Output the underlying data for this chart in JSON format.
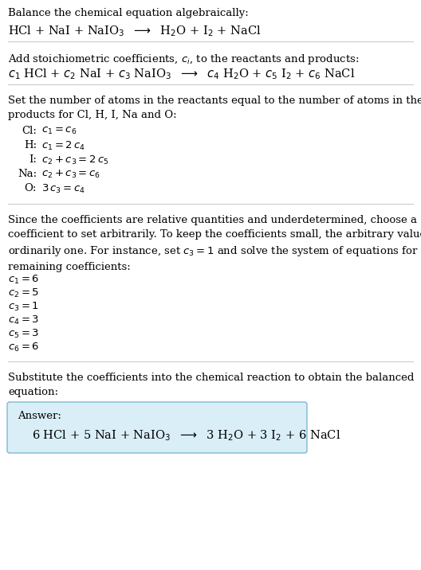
{
  "bg_color": "#ffffff",
  "text_color": "#000000",
  "section1_title": "Balance the chemical equation algebraically:",
  "section1_eq": "HCl + NaI + NaIO$_3$  $\\longrightarrow$  H$_2$O + I$_2$ + NaCl",
  "section2_title": "Add stoichiometric coefficients, $c_i$, to the reactants and products:",
  "section2_eq": "$c_1$ HCl + $c_2$ NaI + $c_3$ NaIO$_3$  $\\longrightarrow$  $c_4$ H$_2$O + $c_5$ I$_2$ + $c_6$ NaCl",
  "section3_title": "Set the number of atoms in the reactants equal to the number of atoms in the\nproducts for Cl, H, I, Na and O:",
  "section3_equations": [
    [
      "Cl:",
      "$c_1 = c_6$"
    ],
    [
      "H:",
      "$c_1 = 2\\,c_4$"
    ],
    [
      "I:",
      "$c_2 + c_3 = 2\\,c_5$"
    ],
    [
      "Na:",
      "$c_2 + c_3 = c_6$"
    ],
    [
      "O:",
      "$3\\,c_3 = c_4$"
    ]
  ],
  "section4_text": "Since the coefficients are relative quantities and underdetermined, choose a\ncoefficient to set arbitrarily. To keep the coefficients small, the arbitrary value is\nordinarily one. For instance, set $c_3 = 1$ and solve the system of equations for the\nremaining coefficients:",
  "section4_solutions": [
    "$c_1 = 6$",
    "$c_2 = 5$",
    "$c_3 = 1$",
    "$c_4 = 3$",
    "$c_5 = 3$",
    "$c_6 = 6$"
  ],
  "section5_text": "Substitute the coefficients into the chemical reaction to obtain the balanced\nequation:",
  "answer_label": "Answer:",
  "answer_eq": "6 HCl + 5 NaI + NaIO$_3$  $\\longrightarrow$  3 H$_2$O + 3 I$_2$ + 6 NaCl",
  "answer_box_facecolor": "#daeef8",
  "answer_box_edgecolor": "#7fb8d4",
  "font_size": 9.5,
  "font_size_eq": 10.5
}
